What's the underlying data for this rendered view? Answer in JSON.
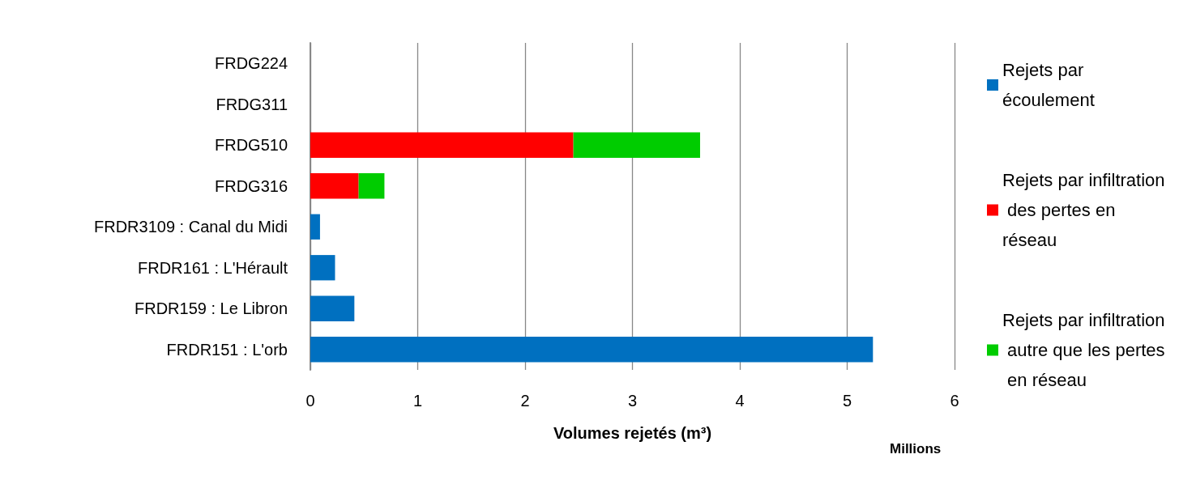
{
  "chart_data": {
    "type": "bar",
    "orientation": "horizontal",
    "stacked": true,
    "categories": [
      "FRDG224",
      "FRDG311",
      "FRDG510",
      "FRDG316",
      "FRDR3109 : Canal du Midi",
      "FRDR161 : L'Hérault",
      "FRDR159 : Le Libron",
      "FRDR151 : L'orb"
    ],
    "series": [
      {
        "name": "Rejets par écoulement",
        "color": "#0070c0",
        "values": [
          null,
          null,
          null,
          null,
          0.09,
          0.23,
          0.41,
          5.24
        ]
      },
      {
        "name": "Rejets par infiltration des pertes en réseau",
        "color": "#ff0000",
        "values": [
          null,
          null,
          2.45,
          0.45,
          null,
          null,
          null,
          null
        ]
      },
      {
        "name": "Rejets par infiltration autre que les pertes en réseau",
        "color": "#00cc00",
        "values": [
          null,
          null,
          1.18,
          0.24,
          null,
          null,
          null,
          null
        ]
      }
    ],
    "xlabel": "Volumes rejetés (m³)",
    "annotations": [
      "Millions"
    ],
    "xlim": [
      0,
      6
    ],
    "xticks": [
      0,
      1,
      2,
      3,
      4,
      5,
      6
    ],
    "grid": "x",
    "legend": "right"
  }
}
